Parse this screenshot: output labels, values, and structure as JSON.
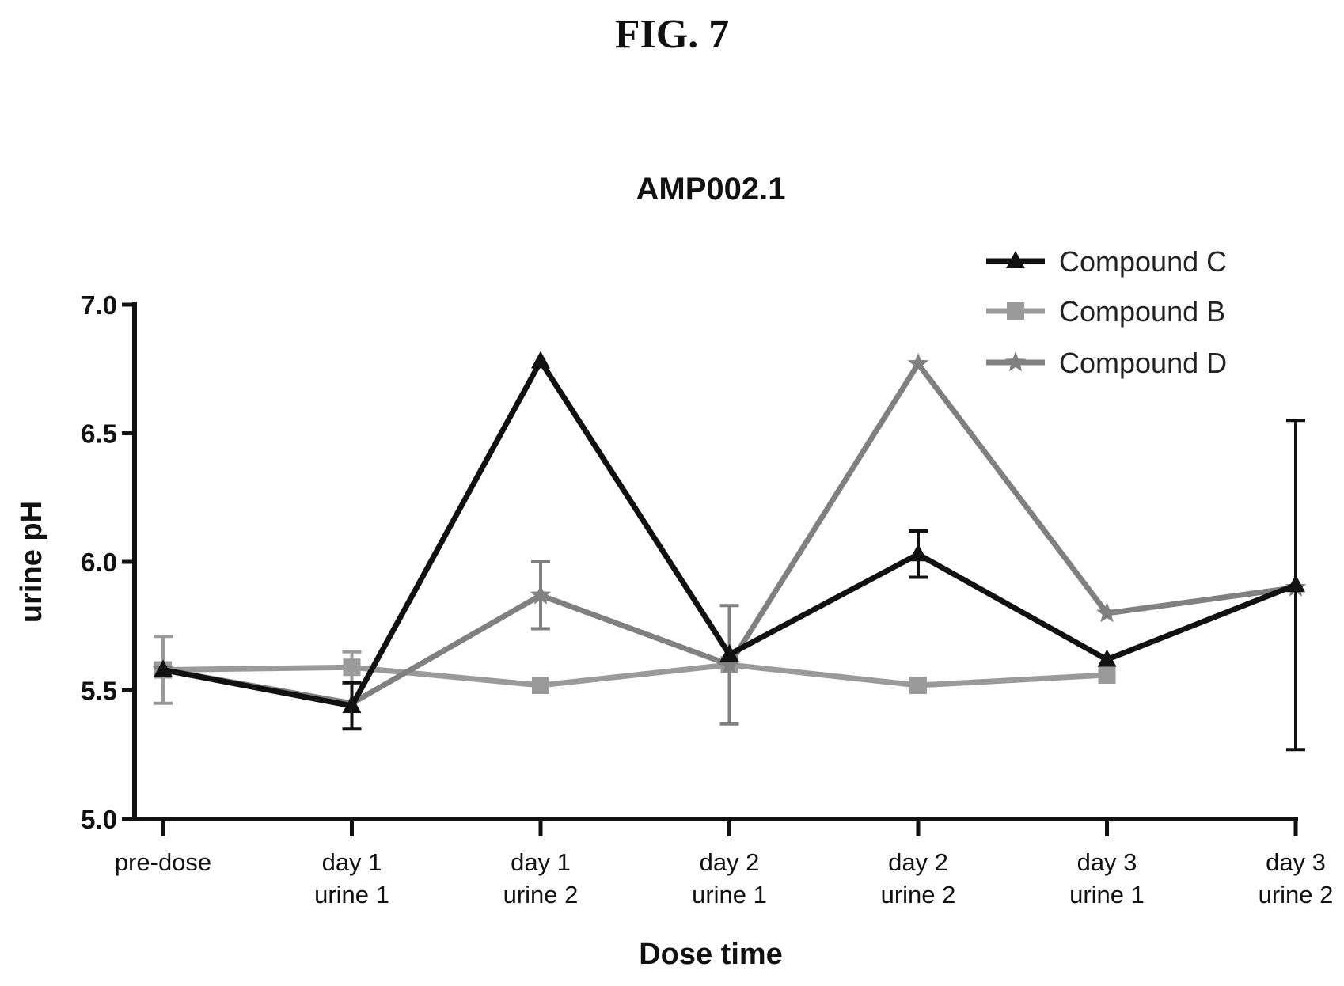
{
  "figure_label": "FIG. 7",
  "chart_data": {
    "type": "line",
    "title": "AMP002.1",
    "xlabel": "Dose time",
    "ylabel": "urine pH",
    "ylim": [
      5.0,
      7.0
    ],
    "yticks": [
      "5.0",
      "5.5",
      "6.0",
      "6.5",
      "7.0"
    ],
    "categories": [
      [
        "pre-dose"
      ],
      [
        "day 1",
        "urine 1"
      ],
      [
        "day 1",
        "urine 2"
      ],
      [
        "day 2",
        "urine 1"
      ],
      [
        "day 2",
        "urine 2"
      ],
      [
        "day 3",
        "urine 1"
      ],
      [
        "day 3",
        "urine 2"
      ]
    ],
    "grid": false,
    "legend_position": "top-right",
    "series": [
      {
        "name": "Compound C",
        "color": "#111111",
        "marker": "triangle",
        "values": [
          5.58,
          5.44,
          6.78,
          5.64,
          6.03,
          5.62,
          5.91
        ],
        "error": [
          null,
          0.09,
          null,
          null,
          0.09,
          null,
          0.64
        ]
      },
      {
        "name": "Compound B",
        "color": "#9a9a9a",
        "marker": "square",
        "values": [
          5.58,
          5.59,
          5.52,
          5.6,
          5.52,
          5.56,
          null
        ],
        "error": [
          0.13,
          0.06,
          null,
          null,
          null,
          null,
          null
        ]
      },
      {
        "name": "Compound D",
        "color": "#808080",
        "marker": "star",
        "values": [
          5.58,
          5.45,
          5.87,
          5.6,
          6.77,
          5.8,
          5.9
        ],
        "error": [
          null,
          null,
          0.13,
          0.23,
          null,
          null,
          null
        ]
      }
    ]
  }
}
